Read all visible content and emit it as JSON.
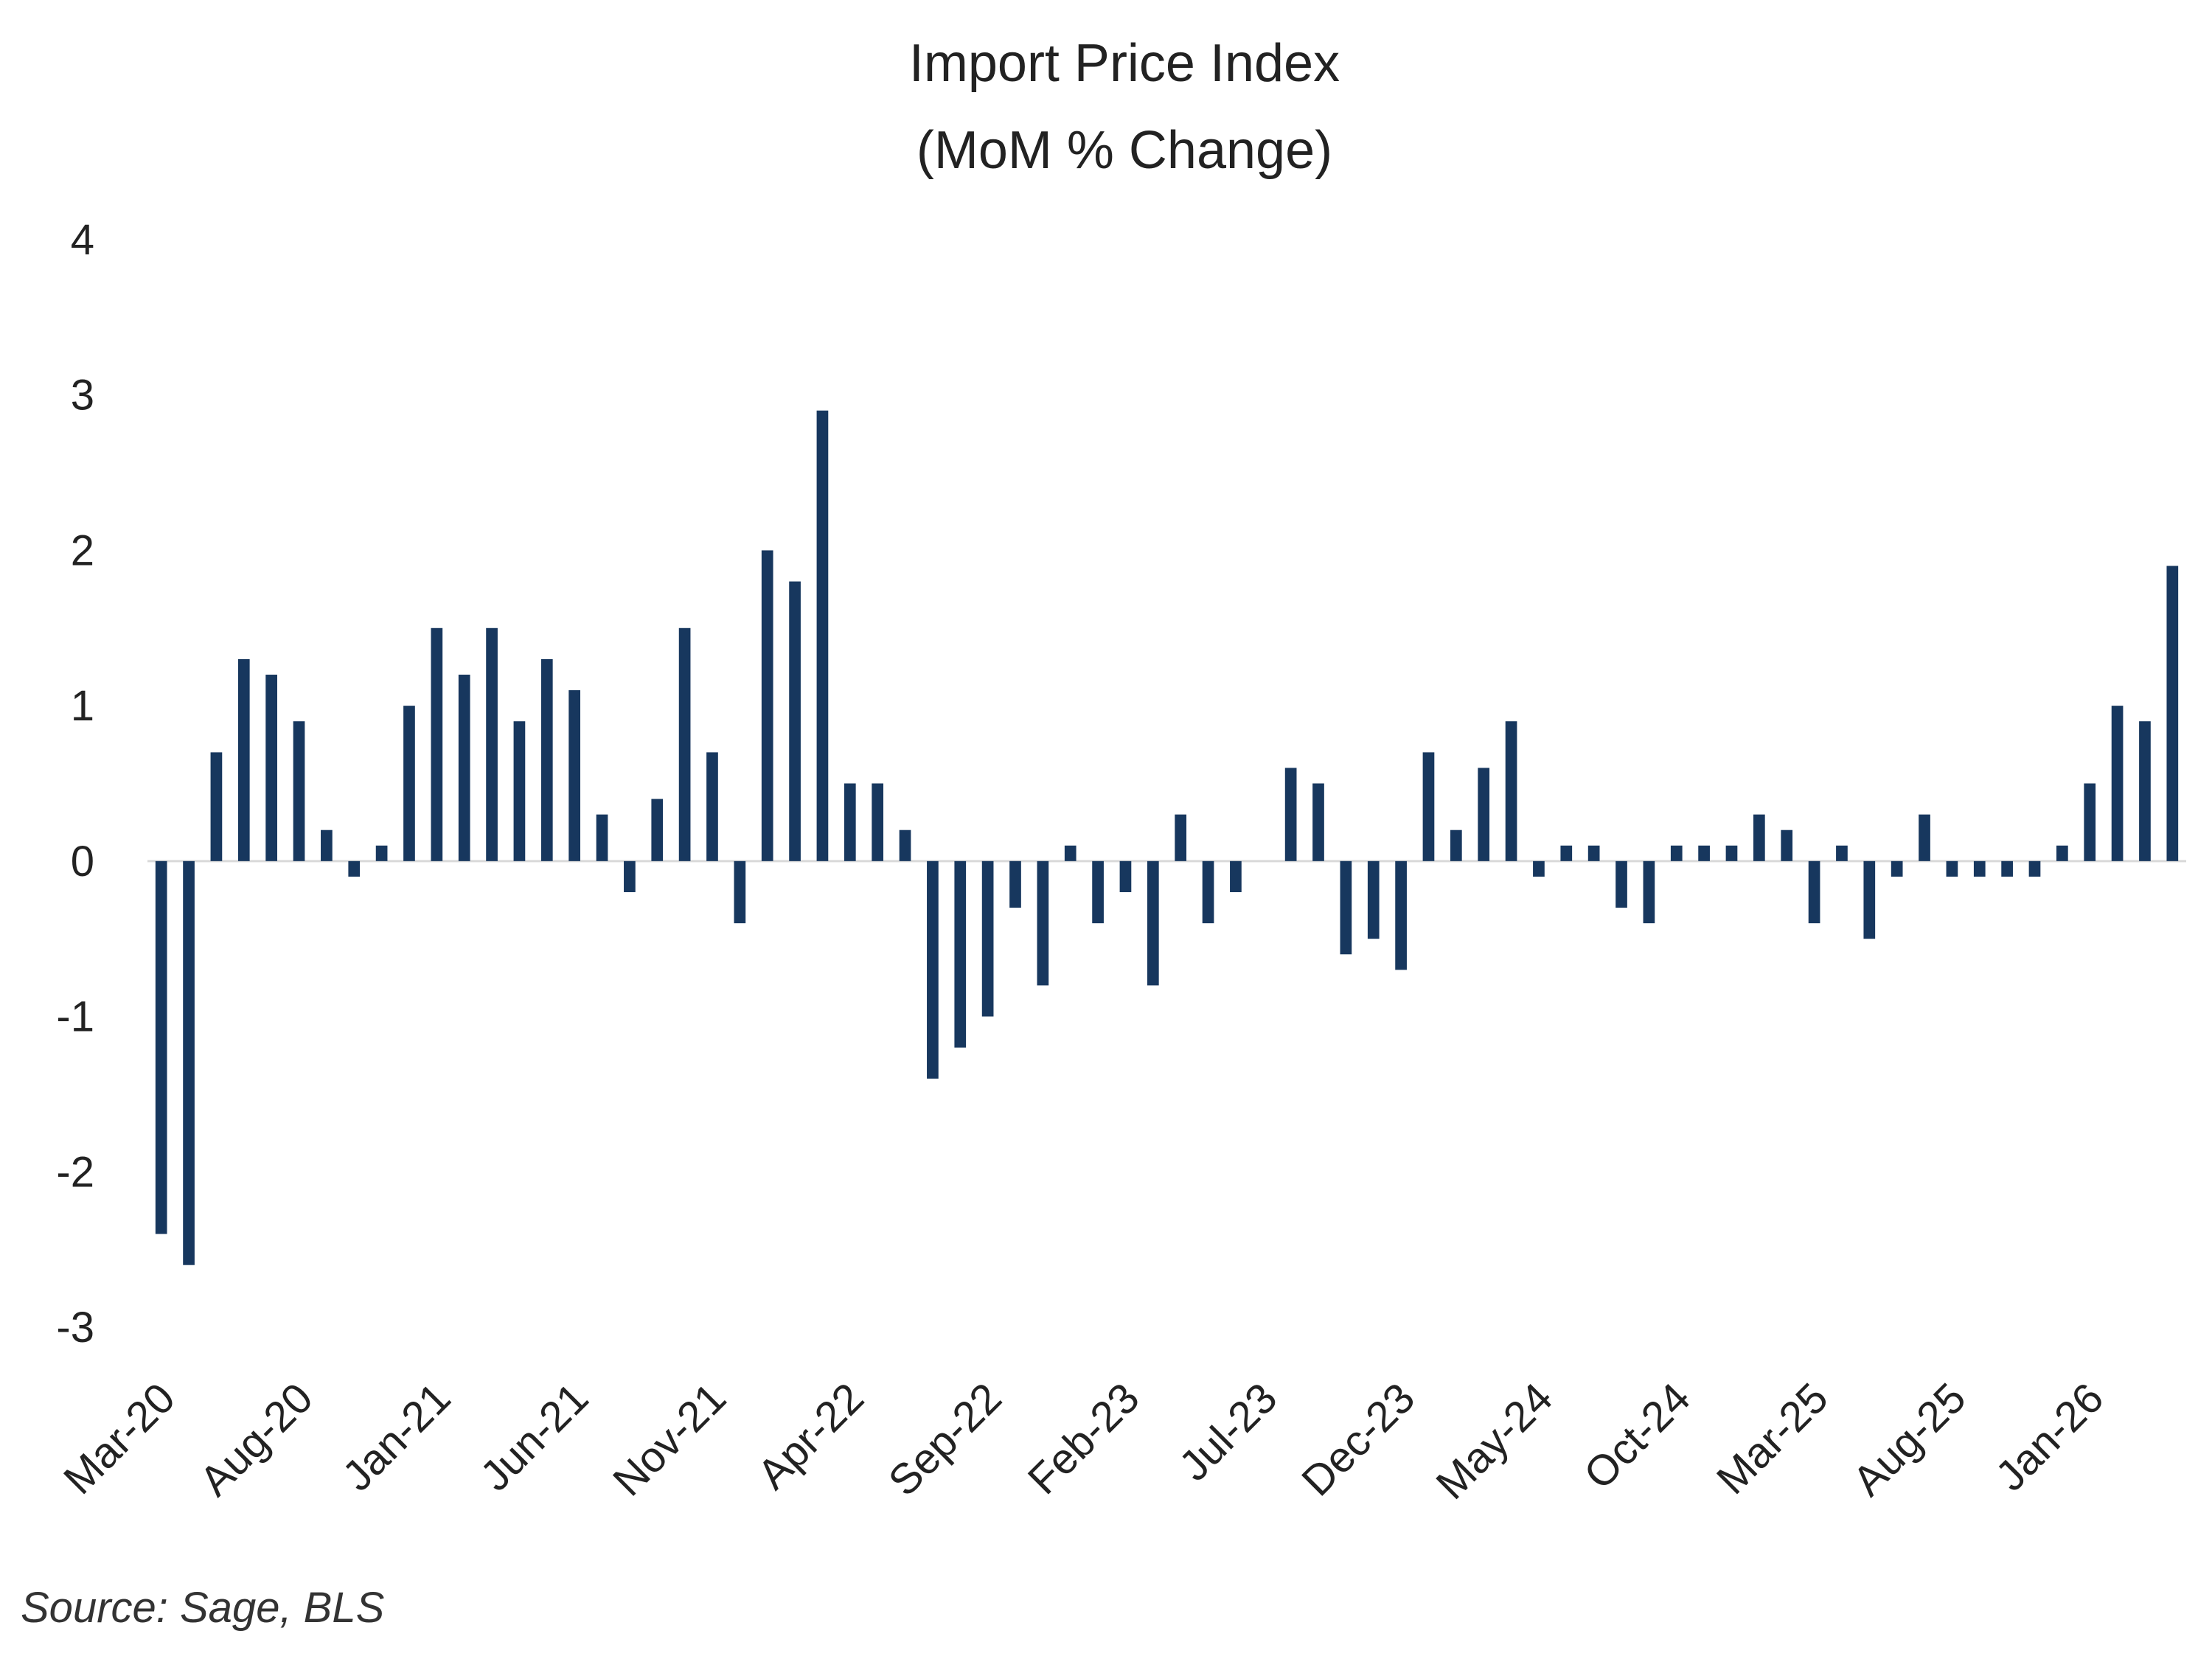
{
  "chart_data": {
    "type": "bar",
    "title": "Import Price Index",
    "subtitle": "(MoM % Change)",
    "source": "Source: Sage, BLS",
    "ylim": [
      -3,
      4
    ],
    "yticks": [
      "4",
      "3",
      "2",
      "1",
      "0",
      "-1",
      "-2",
      "-3"
    ],
    "ytick_values": [
      4,
      3,
      2,
      1,
      0,
      -1,
      -2,
      -3
    ],
    "grid": false,
    "legend": "none",
    "bar_color": "#17375E",
    "zero_line_color": "#D9D9D9",
    "x_tick_labels": [
      "Mar-20",
      "Aug-20",
      "Jan-21",
      "Jun-21",
      "Nov-21",
      "Apr-22",
      "Sep-22",
      "Feb-23",
      "Jul-23",
      "Dec-23",
      "May-24",
      "Oct-24",
      "Mar-25",
      "Aug-25",
      "Jan-26"
    ],
    "x_tick_categories": [
      "Mar-20",
      "Aug-20",
      "Jan-21",
      "Jun-21",
      "Nov-21",
      "Apr-22",
      "Sep-22",
      "Feb-23",
      "Jul-23",
      "Dec-23",
      "May-24",
      "Oct-24",
      "Mar-25",
      "Aug-25",
      "Jan-26"
    ],
    "categories": [
      "Mar-20",
      "Apr-20",
      "May-20",
      "Jun-20",
      "Jul-20",
      "Aug-20",
      "Sep-20",
      "Oct-20",
      "Nov-20",
      "Dec-20",
      "Jan-21",
      "Feb-21",
      "Mar-21",
      "Apr-21",
      "May-21",
      "Jun-21",
      "Jul-21",
      "Aug-21",
      "Sep-21",
      "Oct-21",
      "Nov-21",
      "Dec-21",
      "Jan-22",
      "Feb-22",
      "Mar-22",
      "Apr-22",
      "May-22",
      "Jun-22",
      "Jul-22",
      "Aug-22",
      "Sep-22",
      "Oct-22",
      "Nov-22",
      "Dec-22",
      "Jan-23",
      "Feb-23",
      "Mar-23",
      "Apr-23",
      "May-23",
      "Jun-23",
      "Jul-23",
      "Aug-23",
      "Sep-23",
      "Oct-23",
      "Nov-23",
      "Dec-23",
      "Jan-24",
      "Feb-24",
      "Mar-24",
      "Apr-24",
      "May-24",
      "Jun-24",
      "Jul-24",
      "Aug-24",
      "Sep-24",
      "Oct-24",
      "Nov-24",
      "Dec-24",
      "Jan-25",
      "Feb-25",
      "Mar-25",
      "Apr-25",
      "May-25",
      "Jun-25",
      "Jul-25",
      "Aug-25",
      "Sep-25",
      "Oct-25",
      "Nov-25",
      "Dec-25",
      "Jan-26",
      "Feb-26",
      "Mar-26",
      "Apr-26"
    ],
    "values": [
      -2.4,
      -2.6,
      0.7,
      1.3,
      1.2,
      0.9,
      0.2,
      -0.1,
      0.1,
      1.0,
      1.5,
      1.2,
      1.5,
      0.9,
      1.3,
      1.1,
      0.3,
      -0.2,
      0.4,
      1.5,
      0.7,
      -0.4,
      2.0,
      1.8,
      2.9,
      0.5,
      0.5,
      0.2,
      -1.4,
      -1.2,
      -1.0,
      -0.3,
      -0.8,
      0.1,
      -0.4,
      -0.2,
      -0.8,
      0.3,
      -0.4,
      -0.2,
      0.0,
      0.6,
      0.5,
      -0.6,
      -0.5,
      -0.7,
      0.7,
      0.2,
      0.6,
      0.9,
      -0.1,
      0.1,
      0.1,
      -0.3,
      -0.4,
      0.1,
      0.1,
      0.1,
      0.3,
      0.2,
      -0.4,
      0.1,
      -0.5,
      -0.1,
      0.3,
      -0.1,
      -0.1,
      -0.1,
      -0.1,
      0.1,
      0.5,
      1.0,
      0.9,
      1.9
    ]
  }
}
